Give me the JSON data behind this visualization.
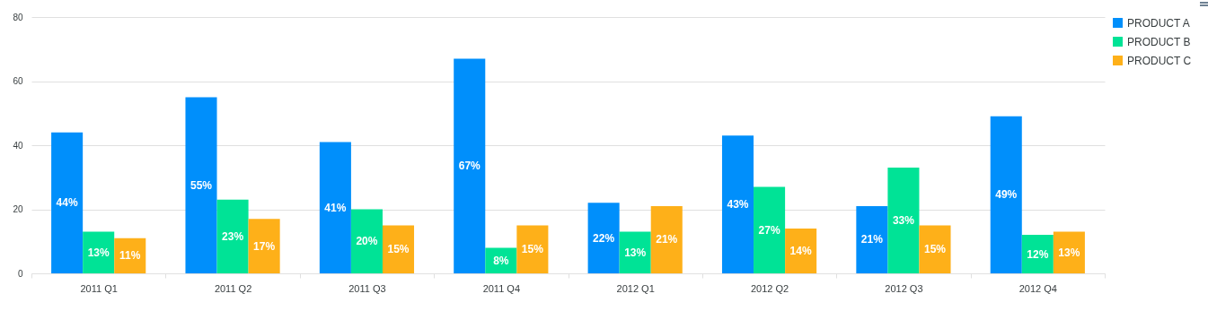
{
  "chart_data": {
    "type": "bar",
    "categories": [
      "2011 Q1",
      "2011 Q2",
      "2011 Q3",
      "2011 Q4",
      "2012 Q1",
      "2012 Q2",
      "2012 Q3",
      "2012 Q4"
    ],
    "series": [
      {
        "name": "PRODUCT A",
        "color": "#008ffb",
        "values": [
          44,
          55,
          41,
          67,
          22,
          43,
          21,
          49
        ],
        "value_labels": [
          "44%",
          "55%",
          "41%",
          "67%",
          "22%",
          "43%",
          "21%",
          "49%"
        ]
      },
      {
        "name": "PRODUCT B",
        "color": "#00e396",
        "values": [
          13,
          23,
          20,
          8,
          13,
          27,
          33,
          12
        ],
        "value_labels": [
          "13%",
          "23%",
          "20%",
          "8%",
          "13%",
          "27%",
          "33%",
          "12%"
        ]
      },
      {
        "name": "PRODUCT C",
        "color": "#feb019",
        "values": [
          11,
          17,
          15,
          15,
          21,
          14,
          15,
          13
        ],
        "value_labels": [
          "11%",
          "17%",
          "15%",
          "15%",
          "21%",
          "14%",
          "15%",
          "13%"
        ]
      }
    ],
    "ylim": [
      0,
      80
    ],
    "yticks": [
      0,
      20,
      40,
      60,
      80
    ],
    "grid": "y",
    "legend": "right"
  }
}
